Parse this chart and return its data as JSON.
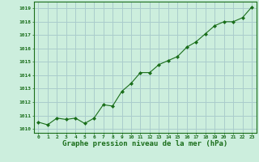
{
  "x": [
    0,
    1,
    2,
    3,
    4,
    5,
    6,
    7,
    8,
    9,
    10,
    11,
    12,
    13,
    14,
    15,
    16,
    17,
    18,
    19,
    20,
    21,
    22,
    23
  ],
  "y": [
    1010.5,
    1010.3,
    1010.8,
    1010.7,
    1010.8,
    1010.4,
    1010.8,
    1011.8,
    1011.7,
    1012.8,
    1013.4,
    1014.2,
    1014.2,
    1014.8,
    1015.1,
    1015.4,
    1016.1,
    1016.5,
    1017.1,
    1017.7,
    1018.0,
    1018.0,
    1018.3,
    1019.1
  ],
  "line_color": "#1a6e1a",
  "marker_color": "#1a6e1a",
  "bg_color": "#cceedd",
  "grid_color": "#aacccc",
  "xlabel": "Graphe pression niveau de la mer (hPa)",
  "xlabel_color": "#1a6e1a",
  "ytick_labels": [
    1010,
    1011,
    1012,
    1013,
    1014,
    1015,
    1016,
    1017,
    1018,
    1019
  ],
  "ylim": [
    1009.7,
    1019.5
  ],
  "xlim": [
    -0.5,
    23.5
  ],
  "tick_color": "#1a6e1a",
  "spine_color": "#1a6e1a"
}
